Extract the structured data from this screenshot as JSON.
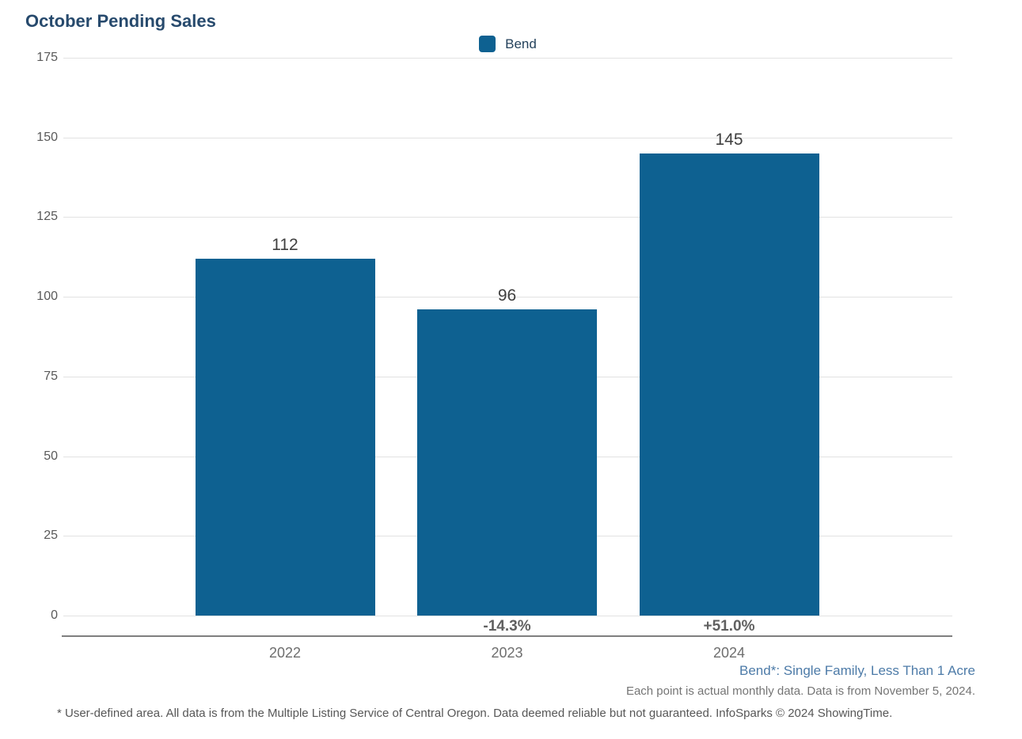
{
  "chart": {
    "title": "October Pending Sales",
    "legend": [
      {
        "label": "Bend",
        "color": "#0e6191"
      }
    ],
    "footnotes": {
      "series_definition": "Bend*: Single Family, Less Than 1 Acre",
      "data_note": "Each point is actual monthly data. Data is from November 5, 2024.",
      "disclaimer": "* User-defined area. All data is from the Multiple Listing Service of Central Oregon. Data deemed reliable but not guaranteed. InfoSparks © 2024 ShowingTime."
    },
    "colors": {
      "bar": "#0e6191",
      "title": "#274a6d",
      "series_note": "#4d7ba8",
      "gridline": "#e2e2e2",
      "axis_line": "#7f7f7f"
    }
  },
  "chart_data": {
    "type": "bar",
    "title": "October Pending Sales",
    "series_name": "Bend",
    "categories": [
      "2022",
      "2023",
      "2024"
    ],
    "values": [
      112,
      96,
      145
    ],
    "value_labels": [
      "112",
      "96",
      "145"
    ],
    "change_labels": [
      "",
      "-14.3%",
      "+51.0%"
    ],
    "ylim": [
      0,
      175
    ],
    "yticks": [
      0,
      25,
      50,
      75,
      100,
      125,
      150,
      175
    ],
    "grid": "horizontal",
    "legend_position": "top-center",
    "bar_color": "#0e6191"
  }
}
